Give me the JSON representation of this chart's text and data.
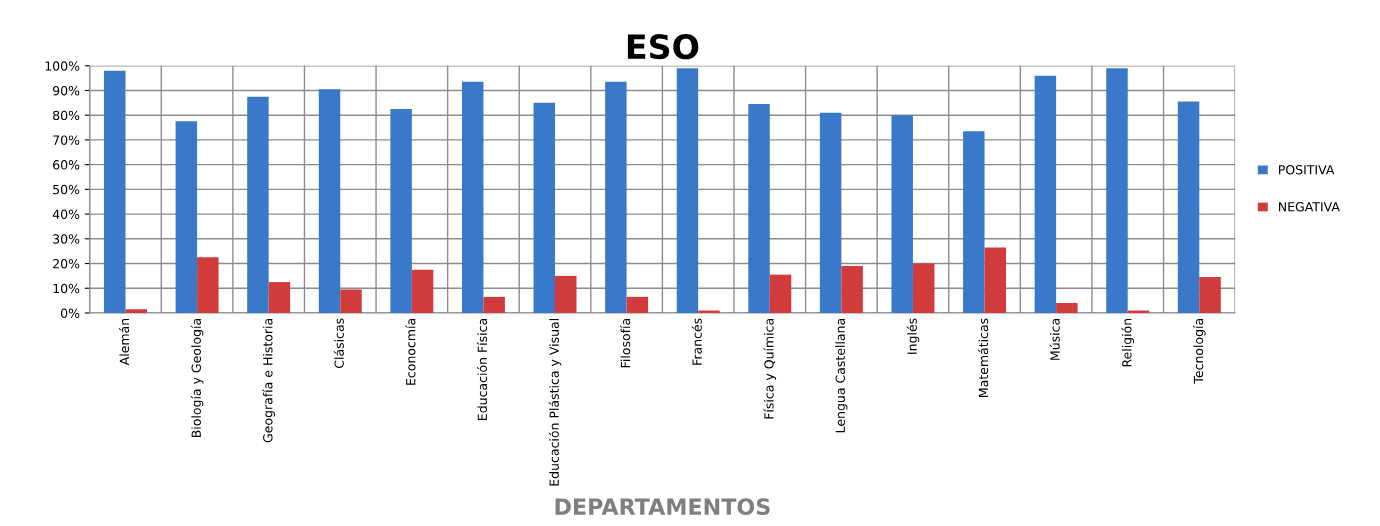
{
  "chart_data": {
    "type": "bar",
    "title": "ESO",
    "xlabel": "DEPARTAMENTOS",
    "categories": [
      "Alemán",
      "Biología y Geología",
      "Geografía e Historia",
      "Clásicas",
      "Econocmía",
      "Educación Física",
      "Educación Plástica y Visual",
      "Filosofía",
      "Francés",
      "Física y Química",
      "Lengua Castellana",
      "Inglés",
      "Matemáticas",
      "Música",
      "Religión",
      "Tecnología"
    ],
    "series": [
      {
        "name": "POSITIVA",
        "color": "#3a78c9",
        "values": [
          98,
          77.5,
          87.5,
          90.5,
          82.5,
          93.5,
          85,
          93.5,
          99,
          84.5,
          81,
          80,
          73.5,
          96,
          99,
          85.5
        ]
      },
      {
        "name": "NEGATIVA",
        "color": "#d13b3b",
        "values": [
          1.5,
          22.5,
          12.5,
          9.5,
          17.5,
          6.5,
          15,
          6.5,
          1,
          15.5,
          19,
          20,
          26.5,
          4,
          1,
          14.5
        ]
      }
    ],
    "ylim": [
      0,
      100
    ],
    "yticks": [
      {
        "value": 0,
        "label": "0%"
      },
      {
        "value": 10,
        "label": "10%"
      },
      {
        "value": 20,
        "label": "20%"
      },
      {
        "value": 30,
        "label": "30%"
      },
      {
        "value": 40,
        "label": "40%"
      },
      {
        "value": 50,
        "label": "50%"
      },
      {
        "value": 60,
        "label": "60%"
      },
      {
        "value": 70,
        "label": "70%"
      },
      {
        "value": 80,
        "label": "80%"
      },
      {
        "value": 90,
        "label": "90%"
      },
      {
        "value": 100,
        "label": "100%"
      }
    ],
    "grid": true,
    "legend": "right"
  }
}
